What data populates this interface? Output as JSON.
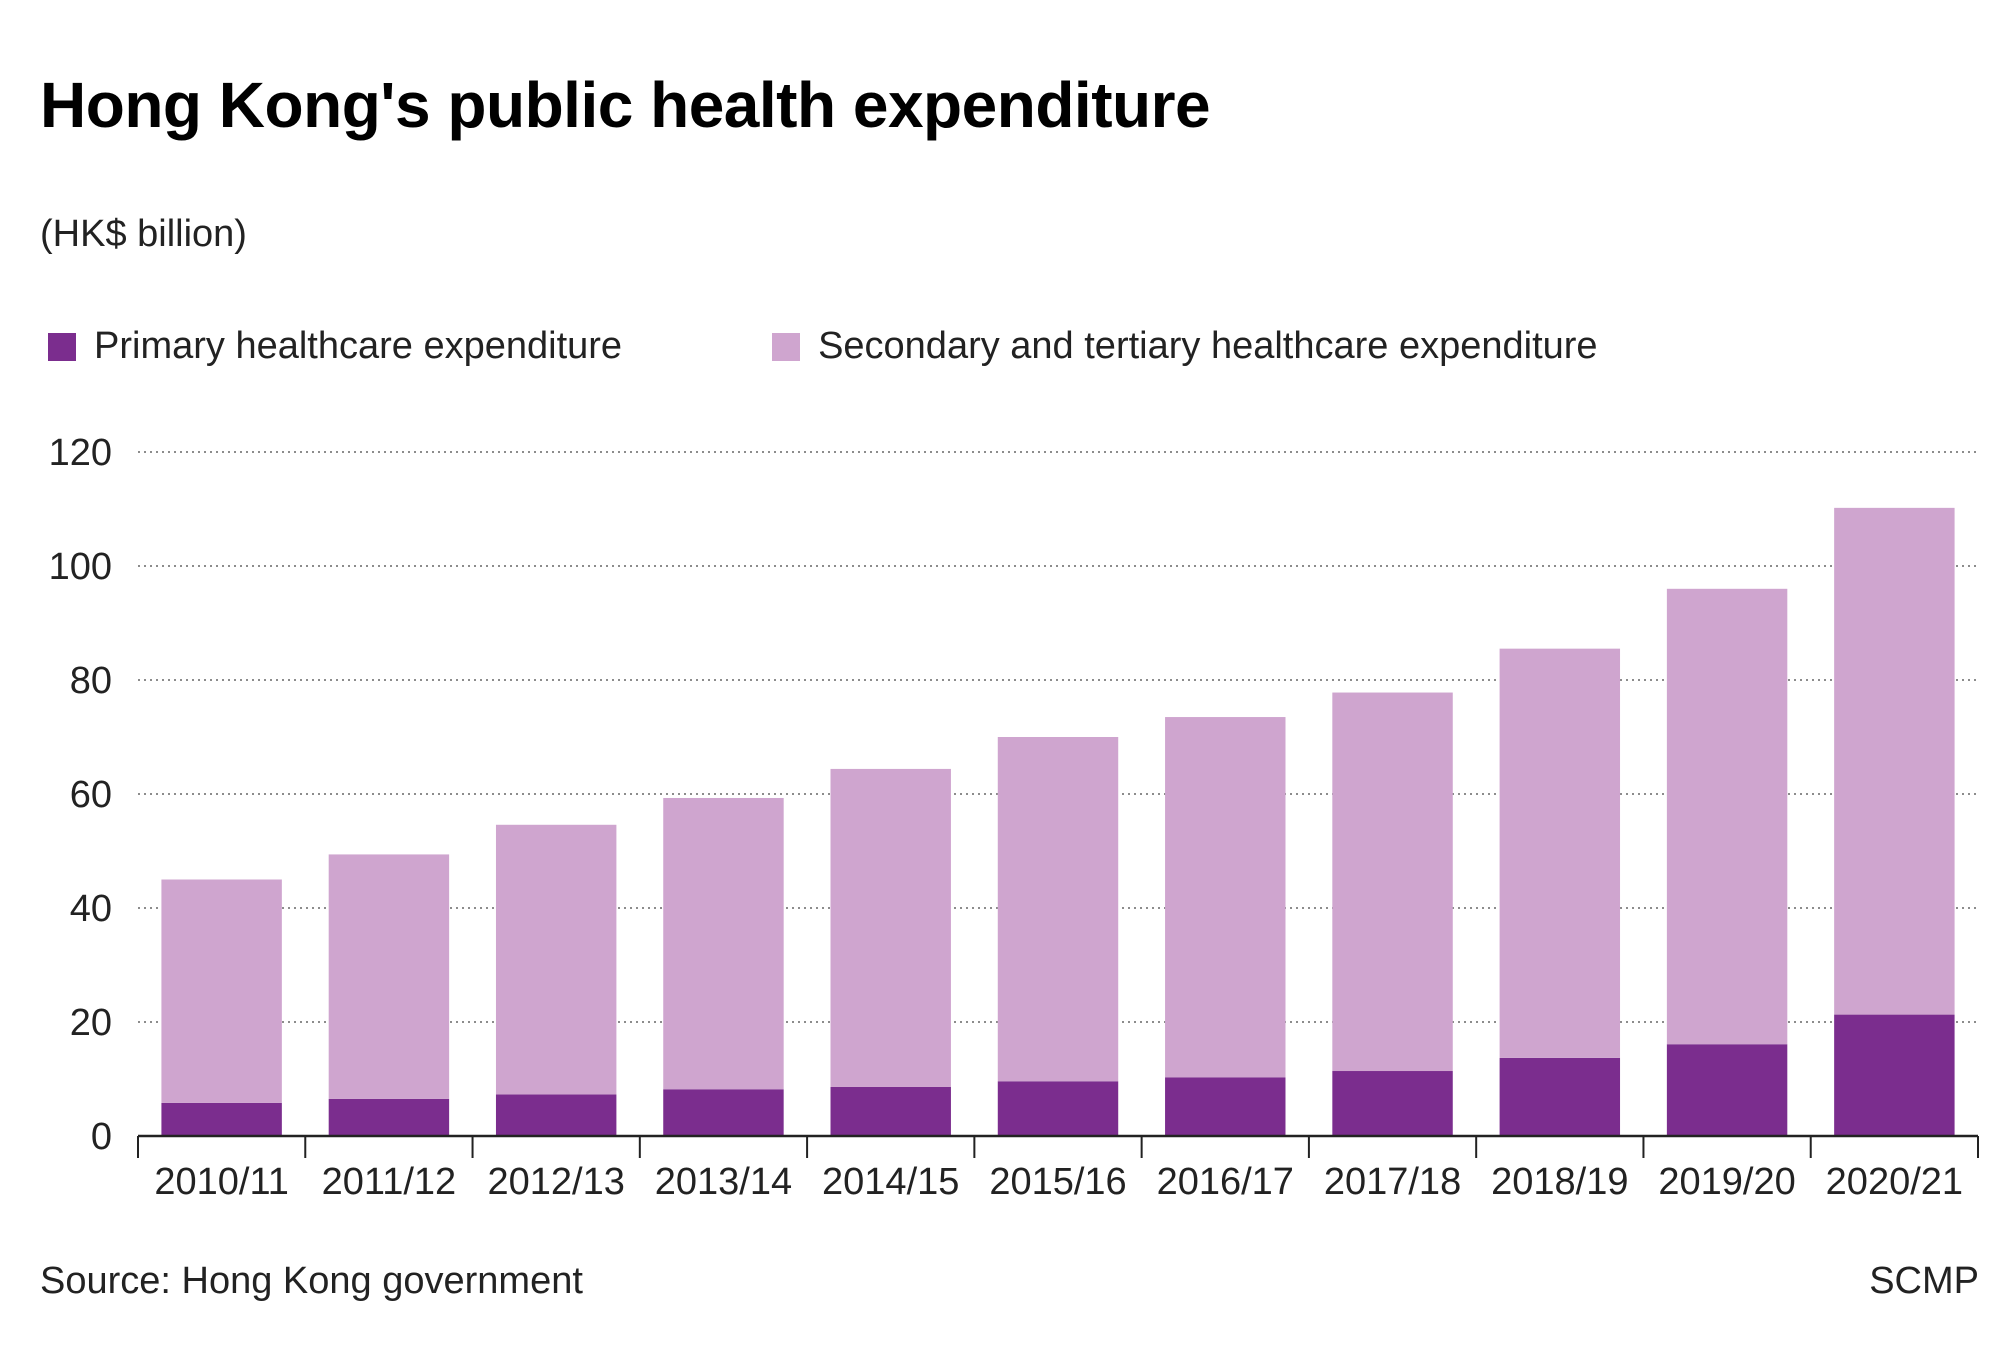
{
  "title": "Hong Kong's public health expenditure",
  "unit_label": "(HK$ billion)",
  "source": "Source: Hong Kong government",
  "brand": "SCMP",
  "colors": {
    "primary": "#7b2d8e",
    "secondary": "#cfa5cf"
  },
  "chart_data": {
    "type": "bar",
    "stacked": true,
    "categories": [
      "2010/11",
      "2011/12",
      "2012/13",
      "2013/14",
      "2014/15",
      "2015/16",
      "2016/17",
      "2017/18",
      "2018/19",
      "2019/20",
      "2020/21"
    ],
    "series": [
      {
        "name": "Primary healthcare expenditure",
        "values": [
          5.8,
          6.5,
          7.3,
          8.2,
          8.6,
          9.6,
          10.3,
          11.4,
          13.7,
          16.1,
          21.3
        ]
      },
      {
        "name": "Secondary and tertiary healthcare expenditure",
        "values": [
          39.2,
          42.9,
          47.3,
          51.1,
          55.8,
          60.4,
          63.2,
          66.4,
          71.8,
          79.9,
          88.9
        ]
      }
    ],
    "ylim": [
      0,
      120
    ],
    "yticks": [
      0,
      20,
      40,
      60,
      80,
      100,
      120
    ],
    "grid": true,
    "legend_position": "top"
  }
}
